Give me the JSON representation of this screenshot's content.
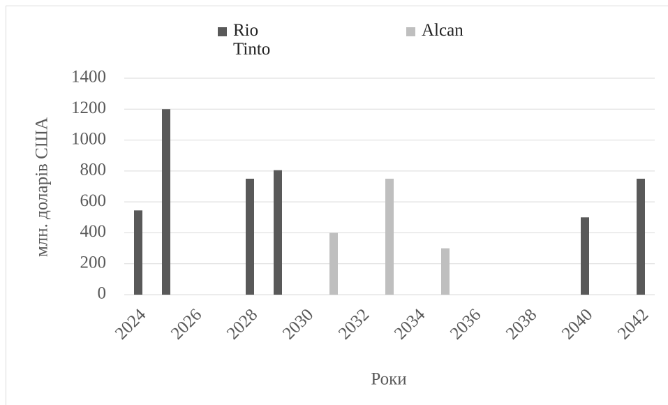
{
  "chart_data": {
    "type": "bar",
    "categories": [
      "2024",
      null,
      "2026",
      null,
      "2028",
      null,
      "2030",
      null,
      "2032",
      null,
      "2034",
      null,
      "2036",
      null,
      "2038",
      null,
      "2040",
      null,
      "2042"
    ],
    "series": [
      {
        "name": "Rio Tinto",
        "color": "#595959",
        "values": [
          545,
          1200,
          null,
          null,
          750,
          805,
          null,
          null,
          null,
          null,
          null,
          null,
          null,
          null,
          null,
          null,
          500,
          null,
          750
        ]
      },
      {
        "name": "Alcan",
        "color": "#bfbfbf",
        "values": [
          null,
          null,
          null,
          null,
          null,
          null,
          null,
          400,
          null,
          750,
          null,
          300,
          null,
          null,
          null,
          null,
          null,
          null,
          null
        ]
      }
    ],
    "ylim": [
      0,
      1400
    ],
    "yticks": [
      0,
      200,
      400,
      600,
      800,
      1000,
      1200,
      1400
    ],
    "y_label": "млн. доларів США",
    "x_label": "Роки",
    "grid": true,
    "legend": "top"
  }
}
